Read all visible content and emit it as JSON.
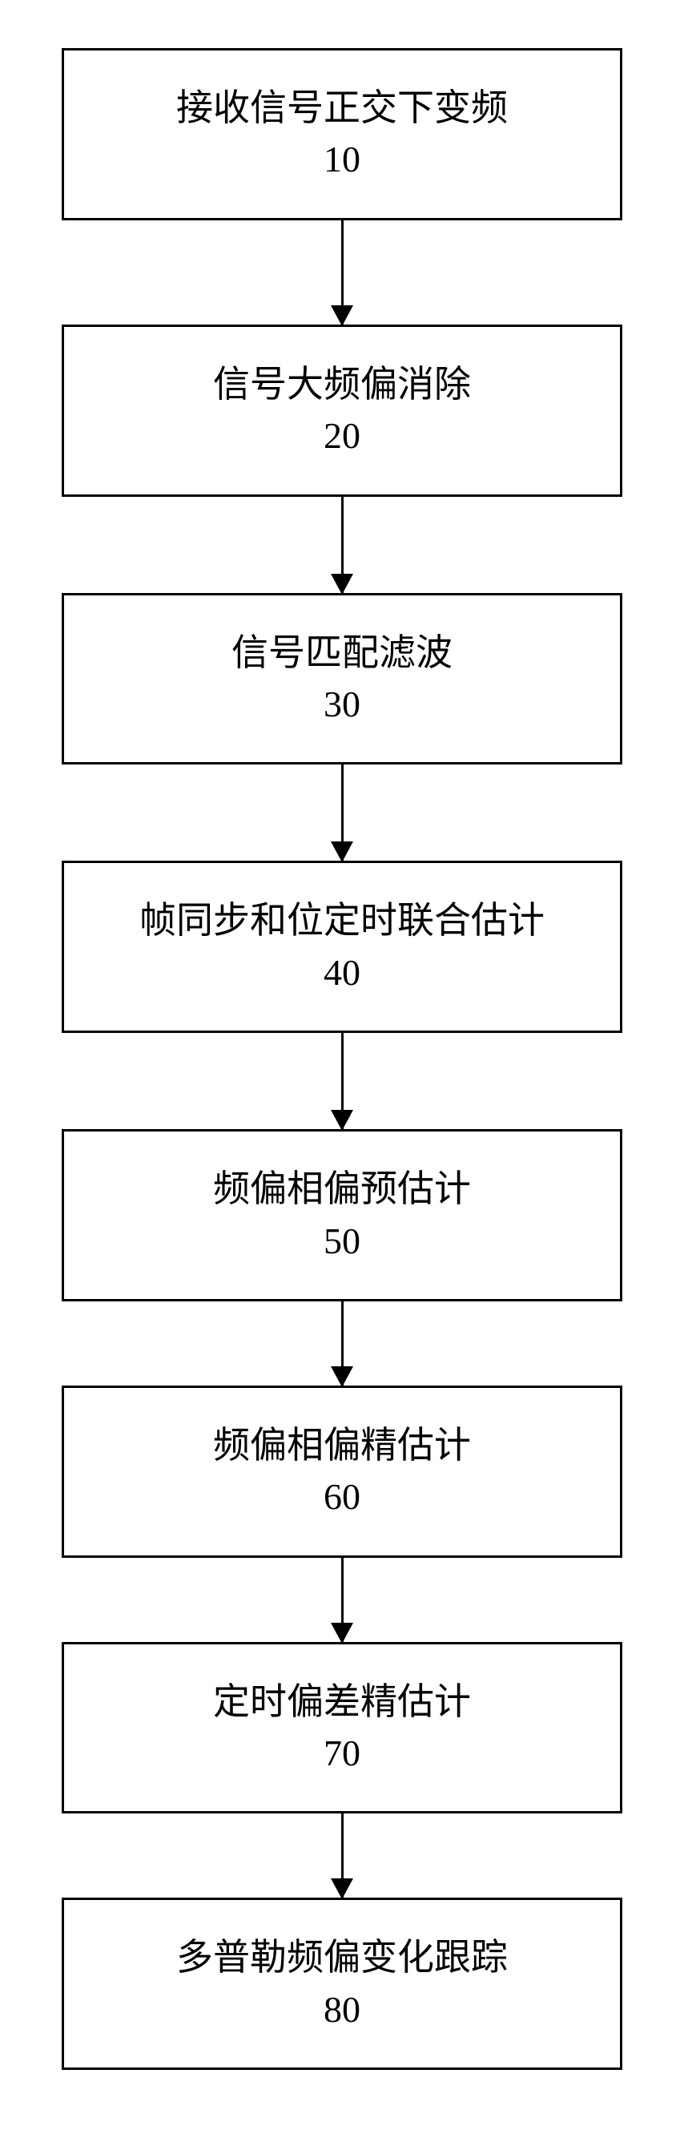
{
  "flowchart": {
    "type": "flowchart",
    "direction": "vertical",
    "background_color": "#ffffff",
    "node_style": {
      "border_color": "#000000",
      "border_width": 3,
      "fill_color": "#ffffff",
      "font_size": 46,
      "font_color": "#000000",
      "padding_vertical": 40,
      "padding_horizontal": 20
    },
    "arrow_style": {
      "color": "#000000",
      "line_width": 3,
      "head_width": 28,
      "head_height": 26
    },
    "nodes": [
      {
        "id": "n10",
        "label": "接收信号正交下变频",
        "number": "10",
        "arrow_after": "long"
      },
      {
        "id": "n20",
        "label": "信号大频偏消除",
        "number": "20",
        "arrow_after": "medium"
      },
      {
        "id": "n30",
        "label": "信号匹配滤波",
        "number": "30",
        "arrow_after": "medium"
      },
      {
        "id": "n40",
        "label": "帧同步和位定时联合估计",
        "number": "40",
        "arrow_after": "medium"
      },
      {
        "id": "n50",
        "label": "频偏相偏预估计",
        "number": "50",
        "arrow_after": "short"
      },
      {
        "id": "n60",
        "label": "频偏相偏精估计",
        "number": "60",
        "arrow_after": "short"
      },
      {
        "id": "n70",
        "label": "定时偏差精估计",
        "number": "70",
        "arrow_after": "short"
      },
      {
        "id": "n80",
        "label": "多普勒频偏变化跟踪",
        "number": "80",
        "arrow_after": null
      }
    ],
    "edges": [
      {
        "from": "n10",
        "to": "n20"
      },
      {
        "from": "n20",
        "to": "n30"
      },
      {
        "from": "n30",
        "to": "n40"
      },
      {
        "from": "n40",
        "to": "n50"
      },
      {
        "from": "n50",
        "to": "n60"
      },
      {
        "from": "n60",
        "to": "n70"
      },
      {
        "from": "n70",
        "to": "n80"
      }
    ]
  }
}
